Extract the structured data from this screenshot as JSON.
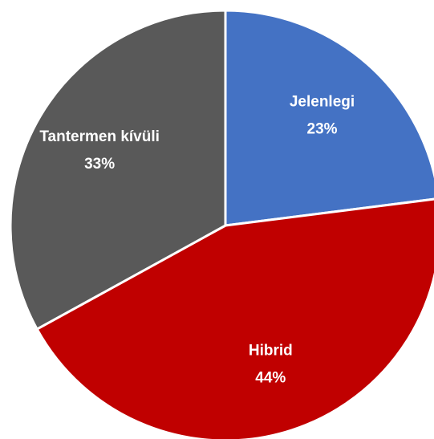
{
  "chart_data": {
    "type": "pie",
    "categories": [
      "Jelenlegi",
      "Hibrid",
      "Tantermen kívüli"
    ],
    "values": [
      23,
      44,
      33
    ],
    "value_labels": [
      "23%",
      "44%",
      "33%"
    ],
    "colors": [
      "#4472c4",
      "#c00000",
      "#595959"
    ]
  }
}
